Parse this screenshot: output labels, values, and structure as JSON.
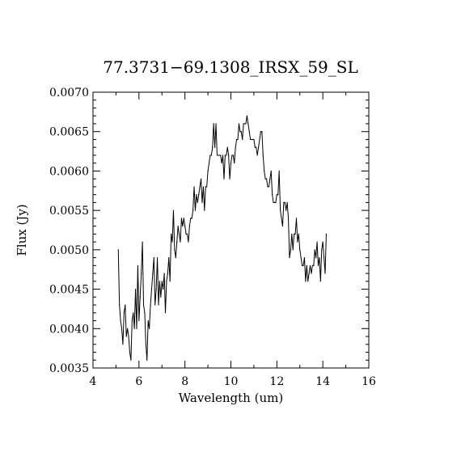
{
  "chart_data": {
    "type": "line",
    "title": "77.3731−69.1308_IRSX_59_SL",
    "xlabel": "Wavelength (um)",
    "ylabel": "Flux (Jy)",
    "xlim": [
      4,
      16
    ],
    "ylim": [
      0.0035,
      0.007
    ],
    "grid": false,
    "legend": "none",
    "x_ticks": [
      4,
      6,
      8,
      10,
      12,
      14,
      16
    ],
    "x_tick_labels": [
      "4",
      "6",
      "8",
      "10",
      "12",
      "14",
      "16"
    ],
    "y_ticks": [
      0.0035,
      0.004,
      0.0045,
      0.005,
      0.0055,
      0.006,
      0.0065,
      0.007
    ],
    "y_tick_labels": [
      "0.0035",
      "0.0040",
      "0.0045",
      "0.0050",
      "0.0055",
      "0.0060",
      "0.0065",
      "0.0070"
    ],
    "series": [
      {
        "color": "#000000",
        "points": [
          [
            5.1,
            0.005
          ],
          [
            5.15,
            0.0043
          ],
          [
            5.2,
            0.0041
          ],
          [
            5.25,
            0.004
          ],
          [
            5.3,
            0.0038
          ],
          [
            5.35,
            0.0042
          ],
          [
            5.4,
            0.0043
          ],
          [
            5.45,
            0.0039
          ],
          [
            5.5,
            0.004
          ],
          [
            5.55,
            0.0039
          ],
          [
            5.6,
            0.0037
          ],
          [
            5.65,
            0.0036
          ],
          [
            5.7,
            0.0041
          ],
          [
            5.75,
            0.0042
          ],
          [
            5.8,
            0.004
          ],
          [
            5.85,
            0.0045
          ],
          [
            5.9,
            0.004
          ],
          [
            5.95,
            0.0048
          ],
          [
            6.0,
            0.0041
          ],
          [
            6.05,
            0.0044
          ],
          [
            6.1,
            0.0047
          ],
          [
            6.15,
            0.0051
          ],
          [
            6.2,
            0.0043
          ],
          [
            6.25,
            0.0042
          ],
          [
            6.3,
            0.0038
          ],
          [
            6.35,
            0.0036
          ],
          [
            6.4,
            0.0041
          ],
          [
            6.45,
            0.004
          ],
          [
            6.5,
            0.0043
          ],
          [
            6.55,
            0.0045
          ],
          [
            6.6,
            0.0047
          ],
          [
            6.65,
            0.0049
          ],
          [
            6.7,
            0.0043
          ],
          [
            6.75,
            0.0045
          ],
          [
            6.8,
            0.0049
          ],
          [
            6.85,
            0.0043
          ],
          [
            6.9,
            0.0046
          ],
          [
            6.95,
            0.0044
          ],
          [
            7.0,
            0.0046
          ],
          [
            7.05,
            0.0045
          ],
          [
            7.1,
            0.0047
          ],
          [
            7.15,
            0.0042
          ],
          [
            7.2,
            0.0046
          ],
          [
            7.25,
            0.0047
          ],
          [
            7.3,
            0.0049
          ],
          [
            7.35,
            0.0046
          ],
          [
            7.4,
            0.0052
          ],
          [
            7.45,
            0.0051
          ],
          [
            7.5,
            0.0055
          ],
          [
            7.55,
            0.005
          ],
          [
            7.6,
            0.0049
          ],
          [
            7.65,
            0.0051
          ],
          [
            7.7,
            0.0053
          ],
          [
            7.75,
            0.0052
          ],
          [
            7.8,
            0.0051
          ],
          [
            7.85,
            0.0054
          ],
          [
            7.9,
            0.0053
          ],
          [
            7.95,
            0.0054
          ],
          [
            8.0,
            0.0053
          ],
          [
            8.05,
            0.0052
          ],
          [
            8.1,
            0.0052
          ],
          [
            8.15,
            0.0051
          ],
          [
            8.2,
            0.0053
          ],
          [
            8.25,
            0.0054
          ],
          [
            8.3,
            0.0054
          ],
          [
            8.35,
            0.0055
          ],
          [
            8.4,
            0.0058
          ],
          [
            8.45,
            0.0055
          ],
          [
            8.5,
            0.0057
          ],
          [
            8.55,
            0.0056
          ],
          [
            8.6,
            0.0057
          ],
          [
            8.65,
            0.0058
          ],
          [
            8.7,
            0.0059
          ],
          [
            8.75,
            0.0056
          ],
          [
            8.8,
            0.0058
          ],
          [
            8.85,
            0.0055
          ],
          [
            8.9,
            0.0058
          ],
          [
            8.95,
            0.0058
          ],
          [
            9.0,
            0.006
          ],
          [
            9.05,
            0.0061
          ],
          [
            9.1,
            0.0062
          ],
          [
            9.15,
            0.0062
          ],
          [
            9.2,
            0.0063
          ],
          [
            9.25,
            0.0066
          ],
          [
            9.3,
            0.0063
          ],
          [
            9.35,
            0.0066
          ],
          [
            9.4,
            0.0062
          ],
          [
            9.45,
            0.0062
          ],
          [
            9.5,
            0.0062
          ],
          [
            9.55,
            0.0062
          ],
          [
            9.6,
            0.0061
          ],
          [
            9.65,
            0.0062
          ],
          [
            9.7,
            0.0059
          ],
          [
            9.75,
            0.0062
          ],
          [
            9.8,
            0.0062
          ],
          [
            9.85,
            0.0063
          ],
          [
            9.9,
            0.0062
          ],
          [
            9.95,
            0.0059
          ],
          [
            10.0,
            0.0061
          ],
          [
            10.05,
            0.0062
          ],
          [
            10.1,
            0.0062
          ],
          [
            10.15,
            0.0061
          ],
          [
            10.2,
            0.0063
          ],
          [
            10.25,
            0.0064
          ],
          [
            10.3,
            0.0064
          ],
          [
            10.35,
            0.0066
          ],
          [
            10.4,
            0.0065
          ],
          [
            10.45,
            0.0065
          ],
          [
            10.5,
            0.0064
          ],
          [
            10.55,
            0.0066
          ],
          [
            10.6,
            0.0066
          ],
          [
            10.65,
            0.0066
          ],
          [
            10.7,
            0.0067
          ],
          [
            10.75,
            0.0066
          ],
          [
            10.8,
            0.0065
          ],
          [
            10.85,
            0.0064
          ],
          [
            10.9,
            0.0064
          ],
          [
            10.95,
            0.0064
          ],
          [
            11.0,
            0.0064
          ],
          [
            11.05,
            0.0063
          ],
          [
            11.1,
            0.0063
          ],
          [
            11.15,
            0.0062
          ],
          [
            11.2,
            0.0063
          ],
          [
            11.25,
            0.0064
          ],
          [
            11.3,
            0.0065
          ],
          [
            11.35,
            0.0065
          ],
          [
            11.4,
            0.0062
          ],
          [
            11.45,
            0.006
          ],
          [
            11.5,
            0.0059
          ],
          [
            11.55,
            0.0059
          ],
          [
            11.6,
            0.0058
          ],
          [
            11.65,
            0.0058
          ],
          [
            11.7,
            0.0059
          ],
          [
            11.75,
            0.006
          ],
          [
            11.8,
            0.0057
          ],
          [
            11.85,
            0.0056
          ],
          [
            11.9,
            0.0056
          ],
          [
            11.95,
            0.0056
          ],
          [
            12.0,
            0.0057
          ],
          [
            12.05,
            0.0057
          ],
          [
            12.1,
            0.006
          ],
          [
            12.15,
            0.0055
          ],
          [
            12.2,
            0.0054
          ],
          [
            12.25,
            0.0053
          ],
          [
            12.3,
            0.0056
          ],
          [
            12.35,
            0.0056
          ],
          [
            12.4,
            0.0055
          ],
          [
            12.45,
            0.0056
          ],
          [
            12.5,
            0.0054
          ],
          [
            12.55,
            0.0049
          ],
          [
            12.6,
            0.005
          ],
          [
            12.65,
            0.0052
          ],
          [
            12.7,
            0.005
          ],
          [
            12.75,
            0.0052
          ],
          [
            12.8,
            0.0052
          ],
          [
            12.85,
            0.0054
          ],
          [
            12.9,
            0.0051
          ],
          [
            12.95,
            0.0052
          ],
          [
            13.0,
            0.005
          ],
          [
            13.05,
            0.0049
          ],
          [
            13.1,
            0.0048
          ],
          [
            13.15,
            0.0048
          ],
          [
            13.2,
            0.0049
          ],
          [
            13.25,
            0.0046
          ],
          [
            13.3,
            0.0048
          ],
          [
            13.35,
            0.0046
          ],
          [
            13.4,
            0.0047
          ],
          [
            13.45,
            0.0048
          ],
          [
            13.5,
            0.0047
          ],
          [
            13.55,
            0.0048
          ],
          [
            13.6,
            0.0048
          ],
          [
            13.65,
            0.005
          ],
          [
            13.7,
            0.0049
          ],
          [
            13.75,
            0.0051
          ],
          [
            13.8,
            0.0048
          ],
          [
            13.85,
            0.0049
          ],
          [
            13.9,
            0.0046
          ],
          [
            13.95,
            0.005
          ],
          [
            14.0,
            0.0051
          ],
          [
            14.05,
            0.0049
          ],
          [
            14.1,
            0.0047
          ],
          [
            14.15,
            0.0052
          ]
        ]
      }
    ]
  }
}
